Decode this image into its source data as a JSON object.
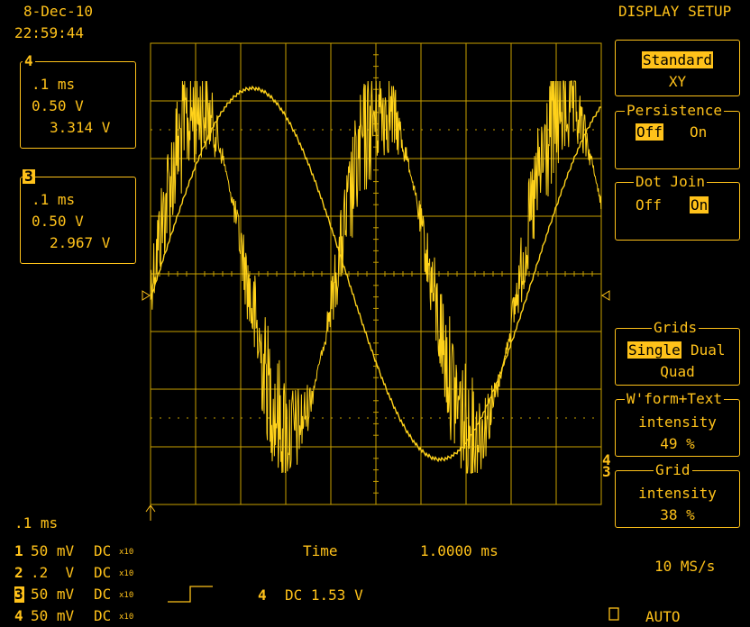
{
  "header": {
    "date": "8-Dec-10",
    "time": "22:59:44",
    "menu_title": "DISPLAY SETUP"
  },
  "channel_boxes": [
    {
      "channel": "4",
      "timebase": ".1 ms",
      "volts_per_div": "0.50 V",
      "offset": "3.314 V"
    },
    {
      "channel": "3",
      "timebase": ".1 ms",
      "volts_per_div": "0.50 V",
      "offset": "2.967 V"
    }
  ],
  "menu": {
    "mode": {
      "standard": "Standard",
      "xy": "XY",
      "selected": "Standard"
    },
    "persistence": {
      "label": "Persistence",
      "off": "Off",
      "on": "On",
      "selected": "Off"
    },
    "dot_join": {
      "label": "Dot Join",
      "off": "Off",
      "on": "On",
      "selected": "On"
    },
    "grids": {
      "label": "Grids",
      "single": "Single",
      "dual": "Dual",
      "quad": "Quad",
      "selected": "Single"
    },
    "wform_intensity": {
      "label": "W'form+Text",
      "sub": "intensity",
      "value": "49 %"
    },
    "grid_intensity": {
      "label": "Grid",
      "sub": "intensity",
      "value": "38 %"
    }
  },
  "bottom": {
    "timebase": ".1 ms",
    "channels": [
      {
        "num": "1",
        "scale": "50 mV",
        "coupling": "DC",
        "probe": "x10"
      },
      {
        "num": "2",
        "scale": ".2  V",
        "coupling": "DC",
        "probe": "x10"
      },
      {
        "num": "3",
        "scale": "50 mV",
        "coupling": "DC",
        "probe": "x10"
      },
      {
        "num": "4",
        "scale": "50 mV",
        "coupling": "DC",
        "probe": "x10"
      }
    ],
    "time_label": "Time",
    "time_value": "1.0000 ms",
    "trigger_channel": "4",
    "trigger_coupling_level": "DC 1.53 V",
    "sample_rate": "10 MS/s",
    "trigger_mode": "AUTO"
  },
  "markers": {
    "ch3_marker": "3",
    "ch4_marker": "4"
  },
  "colors": {
    "trace": "#FFD21A",
    "ui": "#FFC21A",
    "background": "#000000"
  }
}
